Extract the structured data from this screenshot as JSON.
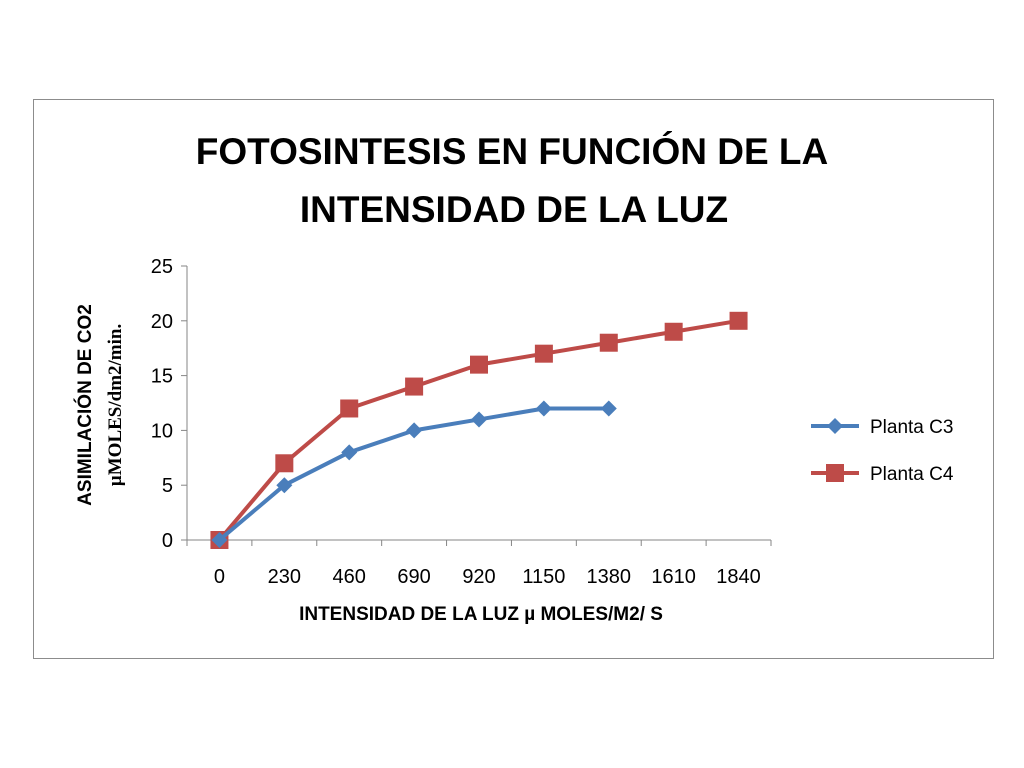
{
  "chart_data": {
    "type": "line",
    "title_lines": [
      "FOTOSINTESIS EN FUNCIÓN DE LA",
      "INTENSIDAD DE LA LUZ"
    ],
    "xlabel": "INTENSIDAD DE LA LUZ µ MOLES/M2/ S",
    "ylabel_lines": [
      "ASIMILACIÓN DE CO2",
      "µMOLES/dm2/min."
    ],
    "categories": [
      "0",
      "230",
      "460",
      "690",
      "920",
      "1150",
      "1380",
      "1610",
      "1840"
    ],
    "y_ticks": [
      0,
      5,
      10,
      15,
      20,
      25
    ],
    "ylim": [
      0,
      25
    ],
    "grid": false,
    "legend_position": "right",
    "series": [
      {
        "name": "Planta C3",
        "marker": "diamond",
        "color": "#4a7ebb",
        "values": [
          0,
          5,
          8,
          10,
          11,
          12,
          12,
          null,
          null
        ]
      },
      {
        "name": "Planta C4",
        "marker": "square",
        "color": "#be4b48",
        "values": [
          0,
          7,
          12,
          14,
          16,
          17,
          18,
          19,
          20
        ]
      }
    ]
  }
}
